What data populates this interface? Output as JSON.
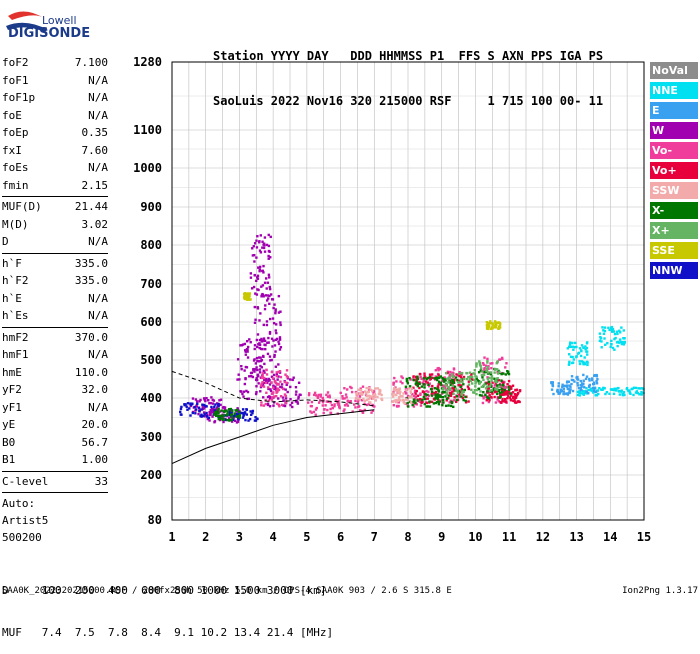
{
  "logo": {
    "line1": "Lowell",
    "line2": "DIGISONDE"
  },
  "header": {
    "line1": "Station YYYY DAY   DDD HHMMSS P1  FFS S AXN PPS IGA PS",
    "line2": "SaoLuis 2022 Nov16 320 215000 RSF     1 715 100 00- 11"
  },
  "params": {
    "group1": [
      {
        "label": "foF2",
        "value": "7.100"
      },
      {
        "label": "foF1",
        "value": "N/A"
      },
      {
        "label": "foF1p",
        "value": "N/A"
      },
      {
        "label": "foE",
        "value": "N/A"
      },
      {
        "label": "foEp",
        "value": "0.35"
      },
      {
        "label": "fxI",
        "value": "7.60"
      },
      {
        "label": "foEs",
        "value": "N/A"
      },
      {
        "label": "fmin",
        "value": "2.15"
      }
    ],
    "group2": [
      {
        "label": "MUF(D)",
        "value": "21.44"
      },
      {
        "label": "M(D)",
        "value": "3.02"
      },
      {
        "label": "D",
        "value": "N/A"
      }
    ],
    "group3": [
      {
        "label": "h`F",
        "value": "335.0"
      },
      {
        "label": "h`F2",
        "value": "335.0"
      },
      {
        "label": "h`E",
        "value": "N/A"
      },
      {
        "label": "h`Es",
        "value": "N/A"
      }
    ],
    "group4": [
      {
        "label": "hmF2",
        "value": "370.0"
      },
      {
        "label": "hmF1",
        "value": "N/A"
      },
      {
        "label": "hmE",
        "value": "110.0"
      },
      {
        "label": "yF2",
        "value": "32.0"
      },
      {
        "label": "yF1",
        "value": "N/A"
      },
      {
        "label": "yE",
        "value": "20.0"
      },
      {
        "label": "B0",
        "value": "56.7"
      },
      {
        "label": "B1",
        "value": "1.00"
      }
    ],
    "group5": [
      {
        "label": "C-level",
        "value": "33"
      }
    ]
  },
  "auto": {
    "line1": "Auto:",
    "line2": "Artist5",
    "line3": "500200"
  },
  "legend": [
    {
      "label": "NoVal",
      "color": "#8c8c8c"
    },
    {
      "label": "NNE",
      "color": "#00e0f0"
    },
    {
      "label": "E",
      "color": "#3aa0f0"
    },
    {
      "label": "W",
      "color": "#a000b0"
    },
    {
      "label": "Vo-",
      "color": "#f03c9a"
    },
    {
      "label": "Vo+",
      "color": "#e8003c"
    },
    {
      "label": "SSW",
      "color": "#f2aaaa"
    },
    {
      "label": "X-",
      "color": "#007800"
    },
    {
      "label": "X+",
      "color": "#64b464"
    },
    {
      "label": "SSE",
      "color": "#c8c800"
    },
    {
      "label": "NNW",
      "color": "#1010c8"
    }
  ],
  "bottom": {
    "d_row": "D     100  200  400  600  800 1000 1500 3000 [km]",
    "muf_row": "MUF   7.4  7.5  7.8  8.4  9.1 10.2 13.4 21.4 [MHz]"
  },
  "footer": {
    "left": "SAA0K_2022320215000.RSF / 280fx256h 50 kHz 5.0 km / DPS-4 SAA0K 903 / 2.6 S 315.8 E",
    "right": "Ion2Png 1.3.17"
  },
  "chart_data": {
    "type": "scatter",
    "x_ticks": [
      "1",
      "2",
      "3",
      "4",
      "5",
      "6",
      "7",
      "8",
      "9",
      "10",
      "11",
      "12",
      "13",
      "14",
      "15"
    ],
    "y_ticks": [
      "80",
      "200",
      "300",
      "400",
      "500",
      "600",
      "700",
      "800",
      "900",
      "1000",
      "1100",
      "1280"
    ],
    "xlim": [
      1,
      15
    ],
    "ylim": [
      80,
      1280
    ],
    "grid": true,
    "series": [
      {
        "name": "W",
        "color": "#a000b0",
        "clusters": [
          [
            2.0,
            380,
            0.5,
            25
          ],
          [
            3.4,
            480,
            0.5,
            80
          ],
          [
            3.8,
            560,
            0.4,
            120
          ],
          [
            3.6,
            750,
            0.3,
            80
          ],
          [
            2.5,
            360,
            0.5,
            20
          ],
          [
            4.3,
            420,
            0.5,
            40
          ]
        ]
      },
      {
        "name": "Vo-",
        "color": "#f03c9a",
        "clusters": [
          [
            4.0,
            430,
            0.4,
            50
          ],
          [
            5.5,
            390,
            0.5,
            30
          ],
          [
            6.5,
            400,
            0.5,
            35
          ],
          [
            8.0,
            420,
            0.5,
            40
          ],
          [
            9.0,
            440,
            0.5,
            50
          ],
          [
            10.5,
            450,
            0.4,
            60
          ]
        ]
      },
      {
        "name": "Vo+",
        "color": "#e8003c",
        "clusters": [
          [
            8.5,
            430,
            0.4,
            40
          ],
          [
            9.5,
            430,
            0.4,
            40
          ],
          [
            10.7,
            420,
            0.4,
            30
          ],
          [
            11.0,
            410,
            0.3,
            20
          ]
        ]
      },
      {
        "name": "NNE",
        "color": "#00e0f0",
        "clusters": [
          [
            13.5,
            420,
            0.5,
            10
          ],
          [
            14.5,
            420,
            0.5,
            10
          ],
          [
            13.0,
            520,
            0.3,
            30
          ],
          [
            14.0,
            560,
            0.4,
            30
          ]
        ]
      },
      {
        "name": "E",
        "color": "#3aa0f0",
        "clusters": [
          [
            12.5,
            430,
            0.3,
            20
          ],
          [
            13.2,
            440,
            0.4,
            25
          ]
        ]
      },
      {
        "name": "NNW",
        "color": "#1010c8",
        "clusters": [
          [
            1.8,
            370,
            0.6,
            20
          ],
          [
            3.0,
            360,
            0.5,
            15
          ]
        ]
      },
      {
        "name": "X-",
        "color": "#007800",
        "clusters": [
          [
            2.6,
            360,
            0.4,
            15
          ],
          [
            8.5,
            420,
            0.6,
            40
          ],
          [
            9.2,
            420,
            0.5,
            40
          ],
          [
            10.5,
            440,
            0.5,
            40
          ]
        ]
      },
      {
        "name": "X+",
        "color": "#64b464",
        "clusters": [
          [
            9.5,
            440,
            0.5,
            30
          ],
          [
            10.3,
            460,
            0.4,
            40
          ]
        ]
      },
      {
        "name": "SSW",
        "color": "#f2aaaa",
        "clusters": [
          [
            6.8,
            410,
            0.4,
            20
          ],
          [
            7.8,
            410,
            0.3,
            20
          ]
        ]
      },
      {
        "name": "SSE",
        "color": "#c8c800",
        "clusters": [
          [
            3.2,
            670,
            0.1,
            10
          ],
          [
            10.5,
            595,
            0.2,
            10
          ]
        ]
      }
    ],
    "profile_lower": [
      [
        1,
        230
      ],
      [
        2,
        270
      ],
      [
        3,
        300
      ],
      [
        4,
        330
      ],
      [
        5,
        350
      ],
      [
        6,
        360
      ],
      [
        7,
        370
      ]
    ],
    "profile_upper": [
      [
        1,
        470
      ],
      [
        2,
        440
      ],
      [
        3,
        400
      ],
      [
        4,
        390
      ],
      [
        5,
        395
      ],
      [
        6,
        390
      ],
      [
        7,
        380
      ]
    ]
  }
}
